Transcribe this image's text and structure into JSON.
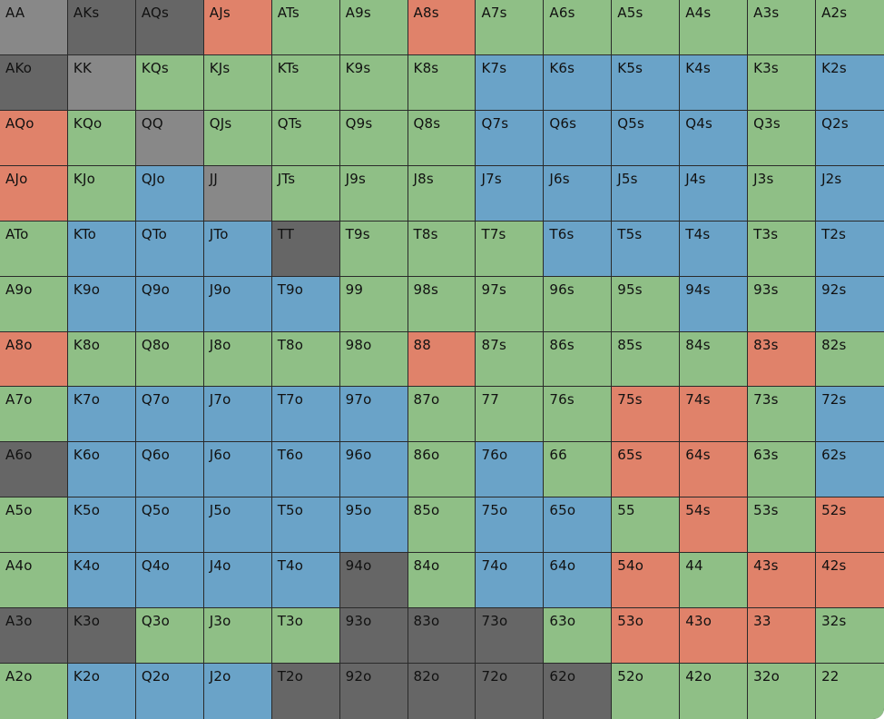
{
  "colors": {
    "raise": "#e0826a",
    "call": "#8fbf86",
    "threebet": "#6aa3c8",
    "fold": "#666666",
    "pair": "#888888"
  },
  "rows": [
    [
      "AA",
      "AKs",
      "AQs",
      "AJs",
      "ATs",
      "A9s",
      "A8s",
      "A7s",
      "A6s",
      "A5s",
      "A4s",
      "A3s",
      "A2s"
    ],
    [
      "AKo",
      "KK",
      "KQs",
      "KJs",
      "KTs",
      "K9s",
      "K8s",
      "K7s",
      "K6s",
      "K5s",
      "K4s",
      "K3s",
      "K2s"
    ],
    [
      "AQo",
      "KQo",
      "QQ",
      "QJs",
      "QTs",
      "Q9s",
      "Q8s",
      "Q7s",
      "Q6s",
      "Q5s",
      "Q4s",
      "Q3s",
      "Q2s"
    ],
    [
      "AJo",
      "KJo",
      "QJo",
      "JJ",
      "JTs",
      "J9s",
      "J8s",
      "J7s",
      "J6s",
      "J5s",
      "J4s",
      "J3s",
      "J2s"
    ],
    [
      "ATo",
      "KTo",
      "QTo",
      "JTo",
      "TT",
      "T9s",
      "T8s",
      "T7s",
      "T6s",
      "T5s",
      "T4s",
      "T3s",
      "T2s"
    ],
    [
      "A9o",
      "K9o",
      "Q9o",
      "J9o",
      "T9o",
      "99",
      "98s",
      "97s",
      "96s",
      "95s",
      "94s",
      "93s",
      "92s"
    ],
    [
      "A8o",
      "K8o",
      "Q8o",
      "J8o",
      "T8o",
      "98o",
      "88",
      "87s",
      "86s",
      "85s",
      "84s",
      "83s",
      "82s"
    ],
    [
      "A7o",
      "K7o",
      "Q7o",
      "J7o",
      "T7o",
      "97o",
      "87o",
      "77",
      "76s",
      "75s",
      "74s",
      "73s",
      "72s"
    ],
    [
      "A6o",
      "K6o",
      "Q6o",
      "J6o",
      "T6o",
      "96o",
      "86o",
      "76o",
      "66",
      "65s",
      "64s",
      "63s",
      "62s"
    ],
    [
      "A5o",
      "K5o",
      "Q5o",
      "J5o",
      "T5o",
      "95o",
      "85o",
      "75o",
      "65o",
      "55",
      "54s",
      "53s",
      "52s"
    ],
    [
      "A4o",
      "K4o",
      "Q4o",
      "J4o",
      "T4o",
      "94o",
      "84o",
      "74o",
      "64o",
      "54o",
      "44",
      "43s",
      "42s"
    ],
    [
      "A3o",
      "K3o",
      "Q3o",
      "J3o",
      "T3o",
      "93o",
      "83o",
      "73o",
      "63o",
      "53o",
      "43o",
      "33",
      "32s"
    ],
    [
      "A2o",
      "K2o",
      "Q2o",
      "J2o",
      "T2o",
      "92o",
      "82o",
      "72o",
      "62o",
      "52o",
      "42o",
      "32o",
      "22"
    ]
  ],
  "fills": [
    [
      "pair",
      "fold",
      "fold",
      "raise",
      "call",
      "call",
      "raise",
      "call",
      "call",
      "call",
      "call",
      "call",
      "call"
    ],
    [
      "fold",
      "pair",
      "call",
      "call",
      "call",
      "call",
      "call",
      "threebet",
      "threebet",
      "threebet",
      "threebet",
      "call",
      "threebet"
    ],
    [
      "raise",
      "call",
      "pair",
      "call",
      "call",
      "call",
      "call",
      "threebet",
      "threebet",
      "threebet",
      "threebet",
      "call",
      "threebet"
    ],
    [
      "raise",
      "call",
      "threebet",
      "pair",
      "call",
      "call",
      "call",
      "threebet",
      "threebet",
      "threebet",
      "threebet",
      "call",
      "threebet"
    ],
    [
      "call",
      "threebet",
      "threebet",
      "threebet",
      "fold",
      "call",
      "call",
      "call",
      "threebet",
      "threebet",
      "threebet",
      "call",
      "threebet"
    ],
    [
      "call",
      "threebet",
      "threebet",
      "threebet",
      "threebet",
      "call",
      "call",
      "call",
      "call",
      "call",
      "threebet",
      "call",
      "threebet"
    ],
    [
      "raise",
      "call",
      "call",
      "call",
      "call",
      "call",
      "raise",
      "call",
      "call",
      "call",
      "call",
      "raise",
      "call"
    ],
    [
      "call",
      "threebet",
      "threebet",
      "threebet",
      "threebet",
      "threebet",
      "call",
      "call",
      "call",
      "raise",
      "raise",
      "call",
      "threebet"
    ],
    [
      "fold",
      "threebet",
      "threebet",
      "threebet",
      "threebet",
      "threebet",
      "call",
      "threebet",
      "call",
      "raise",
      "raise",
      "call",
      "threebet"
    ],
    [
      "call",
      "threebet",
      "threebet",
      "threebet",
      "threebet",
      "threebet",
      "call",
      "threebet",
      "threebet",
      "call",
      "raise",
      "call",
      "raise"
    ],
    [
      "call",
      "threebet",
      "threebet",
      "threebet",
      "threebet",
      "fold",
      "call",
      "threebet",
      "threebet",
      "raise",
      "call",
      "raise",
      "raise"
    ],
    [
      "fold",
      "fold",
      "call",
      "call",
      "call",
      "fold",
      "fold",
      "fold",
      "call",
      "raise",
      "raise",
      "raise",
      "call"
    ],
    [
      "call",
      "threebet",
      "threebet",
      "threebet",
      "fold",
      "fold",
      "fold",
      "fold",
      "fold",
      "call",
      "call",
      "call",
      "call"
    ]
  ]
}
